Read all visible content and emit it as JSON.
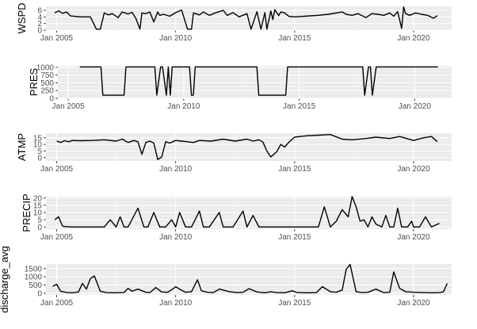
{
  "chart_data": [
    {
      "type": "line",
      "ylabel": "WSPD",
      "y_ticks": [
        0,
        2,
        4,
        6
      ],
      "ylim": [
        0,
        7.2
      ],
      "x_ticks": [
        "Jan 2005",
        "Jan 2010",
        "Jan 2015",
        "Jan 2020"
      ],
      "grid": true,
      "line_color": "#000000",
      "series": [
        {
          "x": [
            "2004-12",
            "2005-02",
            "2005-04",
            "2005-06",
            "2005-08",
            "2006-01",
            "2006-06",
            "2006-09",
            "2006-11",
            "2007-01",
            "2007-03",
            "2007-05",
            "2007-08",
            "2007-10",
            "2008-01",
            "2008-03",
            "2008-05",
            "2008-07",
            "2008-08",
            "2008-10",
            "2008-12",
            "2009-02",
            "2009-04",
            "2009-05",
            "2009-07",
            "2009-10",
            "2010-01",
            "2010-04",
            "2010-07",
            "2010-09",
            "2010-10",
            "2011-01",
            "2011-03",
            "2011-06",
            "2011-09",
            "2012-01",
            "2012-03",
            "2012-06",
            "2012-09",
            "2013-01",
            "2013-03",
            "2013-06",
            "2013-08",
            "2013-10",
            "2013-11",
            "2014-01",
            "2014-02",
            "2014-03",
            "2014-05",
            "2014-06",
            "2014-08",
            "2014-10",
            "2015-01",
            "2015-06",
            "2016-01",
            "2016-06",
            "2017-01",
            "2017-03",
            "2017-06",
            "2017-09",
            "2018-01",
            "2018-04",
            "2018-07",
            "2018-10",
            "2019-01",
            "2019-03",
            "2019-05",
            "2019-07",
            "2019-08",
            "2019-09",
            "2019-11",
            "2020-02",
            "2020-05",
            "2020-08",
            "2020-11",
            "2021-01"
          ],
          "y": [
            5.2,
            5.8,
            5.1,
            5.5,
            4.3,
            4.0,
            4.0,
            0.3,
            0.3,
            5.2,
            4.6,
            5.0,
            3.8,
            5.5,
            4.9,
            5.4,
            3.5,
            0.3,
            5.2,
            5.0,
            5.5,
            2.5,
            5.5,
            4.5,
            4.8,
            4.2,
            5.3,
            6.1,
            0.3,
            0.3,
            5.2,
            4.6,
            5.5,
            4.5,
            5.2,
            6.0,
            4.5,
            5.3,
            4.0,
            5.0,
            0.3,
            5.6,
            0.3,
            5.3,
            0.3,
            5.8,
            3.2,
            6.2,
            4.4,
            5.5,
            5.2,
            4.2,
            4.0,
            4.2,
            4.5,
            4.8,
            5.5,
            4.8,
            4.5,
            5.0,
            3.8,
            5.0,
            4.8,
            4.5,
            5.2,
            4.2,
            5.6,
            0.5,
            7.0,
            5.0,
            4.5,
            5.2,
            4.8,
            4.5,
            3.6,
            4.4
          ]
        }
      ]
    },
    {
      "type": "line",
      "ylabel": "PRES",
      "y_ticks": [
        0,
        250,
        500,
        750,
        1000
      ],
      "ylim": [
        0,
        1050
      ],
      "x_ticks": [
        "Jan 2005",
        "Jan 2010",
        "Jan 2015",
        "Jan 2020"
      ],
      "grid": true,
      "line_color": "#000000",
      "series": [
        {
          "x": [
            "2005-07",
            "2005-10",
            "2006-06",
            "2006-07",
            "2007-06",
            "2007-07",
            "2008-10",
            "2008-11",
            "2009-01",
            "2009-02",
            "2009-04",
            "2009-05",
            "2009-06",
            "2009-07",
            "2010-04",
            "2010-05",
            "2010-06",
            "2010-07",
            "2013-03",
            "2013-04",
            "2013-07",
            "2014-06",
            "2014-07",
            "2017-10",
            "2017-11",
            "2018-01",
            "2018-02",
            "2018-03",
            "2018-05",
            "2021-01"
          ],
          "y": [
            1015,
            1015,
            1015,
            100,
            100,
            1015,
            1015,
            100,
            1015,
            1015,
            100,
            1015,
            100,
            1015,
            1015,
            100,
            100,
            1015,
            1015,
            100,
            100,
            100,
            1015,
            1015,
            100,
            1015,
            1015,
            100,
            1015,
            1015
          ]
        }
      ]
    },
    {
      "type": "line",
      "ylabel": "ATMP",
      "y_ticks": [
        0,
        5,
        10,
        15
      ],
      "ylim": [
        -2.5,
        18.5
      ],
      "x_ticks": [
        "Jan 2005",
        "Jan 2010",
        "Jan 2015",
        "Jan 2020"
      ],
      "grid": true,
      "line_color": "#000000",
      "series": [
        {
          "x": [
            "2005-01",
            "2005-03",
            "2005-05",
            "2005-07",
            "2005-09",
            "2006-01",
            "2006-07",
            "2007-01",
            "2007-07",
            "2007-10",
            "2008-01",
            "2008-04",
            "2008-06",
            "2008-08",
            "2008-10",
            "2008-12",
            "2009-02",
            "2009-04",
            "2009-06",
            "2009-08",
            "2009-10",
            "2010-01",
            "2010-04",
            "2010-07",
            "2010-10",
            "2011-01",
            "2011-07",
            "2012-01",
            "2012-07",
            "2013-01",
            "2013-04",
            "2013-07",
            "2013-09",
            "2013-11",
            "2014-01",
            "2014-04",
            "2014-06",
            "2014-08",
            "2014-10",
            "2015-01",
            "2015-07",
            "2016-01",
            "2016-07",
            "2017-01",
            "2017-06",
            "2018-01",
            "2018-06",
            "2019-01",
            "2019-06",
            "2020-01",
            "2020-06",
            "2020-10",
            "2021-01"
          ],
          "y": [
            12.5,
            11.5,
            12.8,
            12.0,
            13.0,
            12.8,
            13.0,
            13.5,
            12.5,
            14.0,
            11.5,
            13.0,
            12.0,
            2.5,
            11.5,
            12.5,
            11.0,
            -1.5,
            0.5,
            12.0,
            11.0,
            13.0,
            12.5,
            12.0,
            11.5,
            13.0,
            12.5,
            14.0,
            12.5,
            14.0,
            12.5,
            13.5,
            11.8,
            5.0,
            0.5,
            4.5,
            10.0,
            8.0,
            11.5,
            15.5,
            16.5,
            17.0,
            17.5,
            14.0,
            13.5,
            14.5,
            15.5,
            14.5,
            16.0,
            13.0,
            15.0,
            16.0,
            12.0
          ]
        }
      ]
    },
    {
      "type": "line",
      "ylabel": "PRECIP",
      "y_ticks": [
        0,
        5,
        10,
        15,
        20
      ],
      "ylim": [
        -1.5,
        21
      ],
      "x_ticks": [
        "Jan 2005",
        "Jan 2010",
        "Jan 2015",
        "Jan 2020"
      ],
      "grid": true,
      "line_color": "#000000",
      "series": [
        {
          "x": [
            "2004-12",
            "2005-02",
            "2005-04",
            "2005-08",
            "2006-01",
            "2006-06",
            "2006-10",
            "2007-01",
            "2007-04",
            "2007-07",
            "2007-09",
            "2007-11",
            "2008-01",
            "2008-06",
            "2008-09",
            "2008-11",
            "2009-02",
            "2009-05",
            "2009-08",
            "2009-11",
            "2010-01",
            "2010-03",
            "2010-06",
            "2010-09",
            "2011-01",
            "2011-03",
            "2011-06",
            "2011-11",
            "2012-01",
            "2012-06",
            "2012-11",
            "2013-01",
            "2013-04",
            "2013-07",
            "2013-10",
            "2014-01",
            "2014-06",
            "2014-11",
            "2015-01",
            "2015-06",
            "2015-10",
            "2016-01",
            "2016-04",
            "2016-07",
            "2016-10",
            "2017-01",
            "2017-04",
            "2017-06",
            "2017-08",
            "2017-10",
            "2017-12",
            "2018-02",
            "2018-04",
            "2018-06",
            "2018-09",
            "2018-11",
            "2019-01",
            "2019-03",
            "2019-05",
            "2019-07",
            "2019-10",
            "2019-12",
            "2020-01",
            "2020-04",
            "2020-07",
            "2020-10",
            "2021-02"
          ],
          "y": [
            5,
            7,
            0.5,
            0,
            0,
            0,
            0,
            0,
            5,
            0,
            7,
            0,
            0,
            13,
            0,
            0,
            10,
            0,
            0,
            5,
            0,
            10,
            0,
            0,
            11,
            0,
            0,
            10,
            0,
            0,
            11,
            0,
            8,
            0,
            0,
            0,
            0,
            0,
            0,
            0,
            0,
            0,
            14,
            0,
            4,
            12,
            7,
            21,
            14,
            4,
            5,
            0,
            7,
            2,
            0,
            8,
            0,
            0,
            13,
            0,
            0,
            4,
            0,
            0,
            7,
            0,
            2.5
          ]
        }
      ]
    },
    {
      "type": "line",
      "ylabel": "discharge_avg",
      "y_ticks": [
        0,
        500,
        1000,
        1500
      ],
      "ylim": [
        -100,
        1780
      ],
      "x_ticks": [
        "Jan 2005",
        "Jan 2010",
        "Jan 2015",
        "Jan 2020"
      ],
      "grid": true,
      "line_color": "#000000",
      "series": [
        {
          "x": [
            "2004-11",
            "2005-01",
            "2005-03",
            "2005-06",
            "2005-09",
            "2005-12",
            "2006-02",
            "2006-04",
            "2006-06",
            "2006-08",
            "2006-11",
            "2007-02",
            "2007-06",
            "2007-11",
            "2008-01",
            "2008-03",
            "2008-06",
            "2008-10",
            "2008-12",
            "2009-03",
            "2009-06",
            "2009-09",
            "2009-12",
            "2010-01",
            "2010-03",
            "2010-06",
            "2010-09",
            "2010-12",
            "2011-02",
            "2011-05",
            "2011-08",
            "2011-11",
            "2012-01",
            "2012-04",
            "2012-08",
            "2012-11",
            "2013-02",
            "2013-06",
            "2013-10",
            "2014-01",
            "2014-04",
            "2014-08",
            "2014-12",
            "2015-02",
            "2015-06",
            "2015-09",
            "2015-12",
            "2016-03",
            "2016-07",
            "2016-10",
            "2017-01",
            "2017-03",
            "2017-05",
            "2017-08",
            "2017-11",
            "2018-02",
            "2018-06",
            "2018-10",
            "2019-01",
            "2019-03",
            "2019-06",
            "2019-09",
            "2020-01",
            "2020-06",
            "2020-10",
            "2021-02",
            "2021-04",
            "2021-06"
          ],
          "y": [
            420,
            550,
            120,
            50,
            30,
            80,
            600,
            250,
            900,
            1050,
            120,
            40,
            30,
            50,
            300,
            120,
            250,
            60,
            40,
            350,
            80,
            60,
            300,
            400,
            250,
            60,
            100,
            820,
            150,
            60,
            40,
            250,
            200,
            100,
            40,
            60,
            280,
            80,
            30,
            90,
            40,
            30,
            150,
            50,
            30,
            30,
            40,
            400,
            100,
            60,
            200,
            1450,
            1750,
            100,
            40,
            60,
            250,
            40,
            60,
            1300,
            300,
            100,
            60,
            40,
            30,
            40,
            80,
            600
          ]
        }
      ]
    }
  ]
}
